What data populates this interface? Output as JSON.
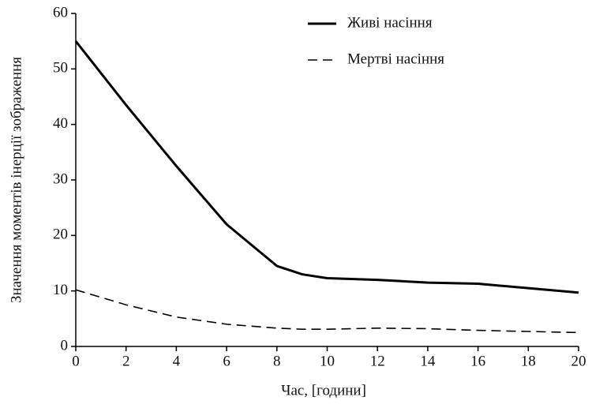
{
  "chart_data": {
    "type": "line",
    "x_label": "Час, [години]",
    "y_label": "Значення моментів інерції зображення",
    "x": [
      0,
      2,
      4,
      6,
      8,
      9,
      10,
      12,
      14,
      16,
      18,
      20
    ],
    "series": [
      {
        "name": "Живі насіння",
        "color": "#000000",
        "line_style": "solid",
        "values": [
          55,
          43.5,
          32.5,
          22,
          14.5,
          13,
          12.3,
          12,
          11.5,
          11.3,
          10.5,
          9.7
        ]
      },
      {
        "name": "Мертві насіння",
        "color": "#000000",
        "line_style": "dashed",
        "values": [
          10.2,
          7.5,
          5.3,
          4,
          3.3,
          3.1,
          3.1,
          3.3,
          3.2,
          2.9,
          2.7,
          2.5
        ]
      }
    ],
    "xlim": [
      0,
      20
    ],
    "xticks": [
      0,
      2,
      4,
      6,
      8,
      10,
      12,
      14,
      16,
      18,
      20
    ],
    "ylim": [
      0,
      60
    ],
    "yticks": [
      0,
      10,
      20,
      30,
      40,
      50,
      60
    ],
    "grid": false,
    "legend": "top-right"
  }
}
